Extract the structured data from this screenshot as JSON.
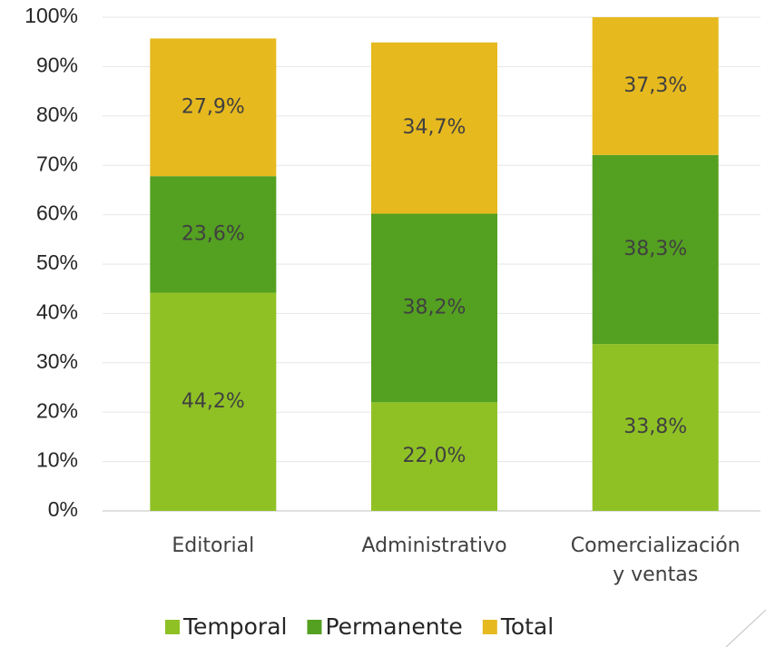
{
  "chart_data": {
    "type": "stacked_bar",
    "categories": [
      "Editorial",
      "Administrativo",
      "Comercialización y ventas"
    ],
    "series": [
      {
        "name": "Temporal",
        "color": "#8fc125",
        "values": [
          44.2,
          22.0,
          33.8
        ],
        "value_labels": [
          "44,2%",
          "22,0%",
          "33,8%"
        ]
      },
      {
        "name": "Permanente",
        "color": "#54a021",
        "values": [
          23.6,
          38.2,
          38.3
        ],
        "value_labels": [
          "23,6%",
          "38,2%",
          "38,3%"
        ]
      },
      {
        "name": "Total",
        "color": "#e6b91e",
        "values": [
          27.9,
          34.7,
          37.3
        ],
        "value_labels": [
          "27,9%",
          "34,7%",
          "37,3%"
        ]
      }
    ],
    "ylim": [
      0,
      100
    ],
    "yticks": [
      {
        "value": 0,
        "label": "0%"
      },
      {
        "value": 10,
        "label": "10%"
      },
      {
        "value": 20,
        "label": "20%"
      },
      {
        "value": 30,
        "label": "30%"
      },
      {
        "value": 40,
        "label": "40%"
      },
      {
        "value": 50,
        "label": "50%"
      },
      {
        "value": 60,
        "label": "60%"
      },
      {
        "value": 70,
        "label": "70%"
      },
      {
        "value": 80,
        "label": "80%"
      },
      {
        "value": 90,
        "label": "90%"
      },
      {
        "value": 100,
        "label": "100%"
      }
    ],
    "grid": true,
    "legend": "bottom"
  }
}
